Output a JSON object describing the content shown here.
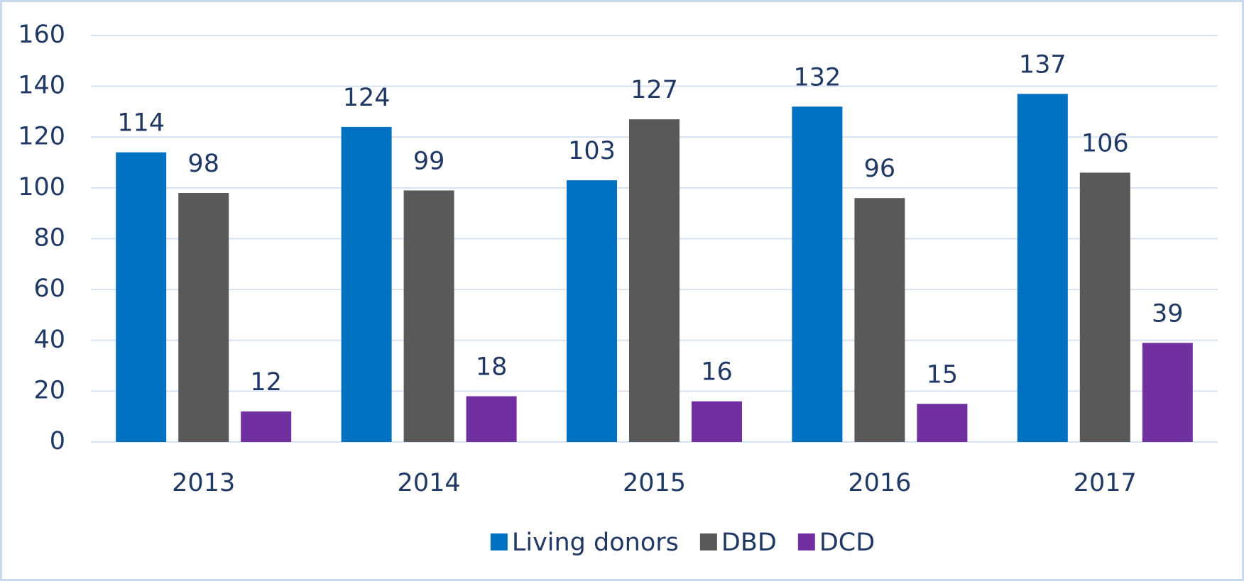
{
  "chart_data": {
    "type": "bar",
    "categories": [
      "2013",
      "2014",
      "2015",
      "2016",
      "2017"
    ],
    "series": [
      {
        "name": "Living donors",
        "color": "#0070c0",
        "values": [
          114,
          124,
          103,
          132,
          137
        ]
      },
      {
        "name": "DBD",
        "color": "#595959",
        "values": [
          98,
          99,
          127,
          96,
          106
        ]
      },
      {
        "name": "DCD",
        "color": "#7030a0",
        "values": [
          12,
          18,
          16,
          15,
          39
        ]
      }
    ],
    "ylim": [
      0,
      160
    ],
    "yticks": [
      0,
      20,
      40,
      60,
      80,
      100,
      120,
      140,
      160
    ],
    "grid": true,
    "legend": "bottom"
  }
}
